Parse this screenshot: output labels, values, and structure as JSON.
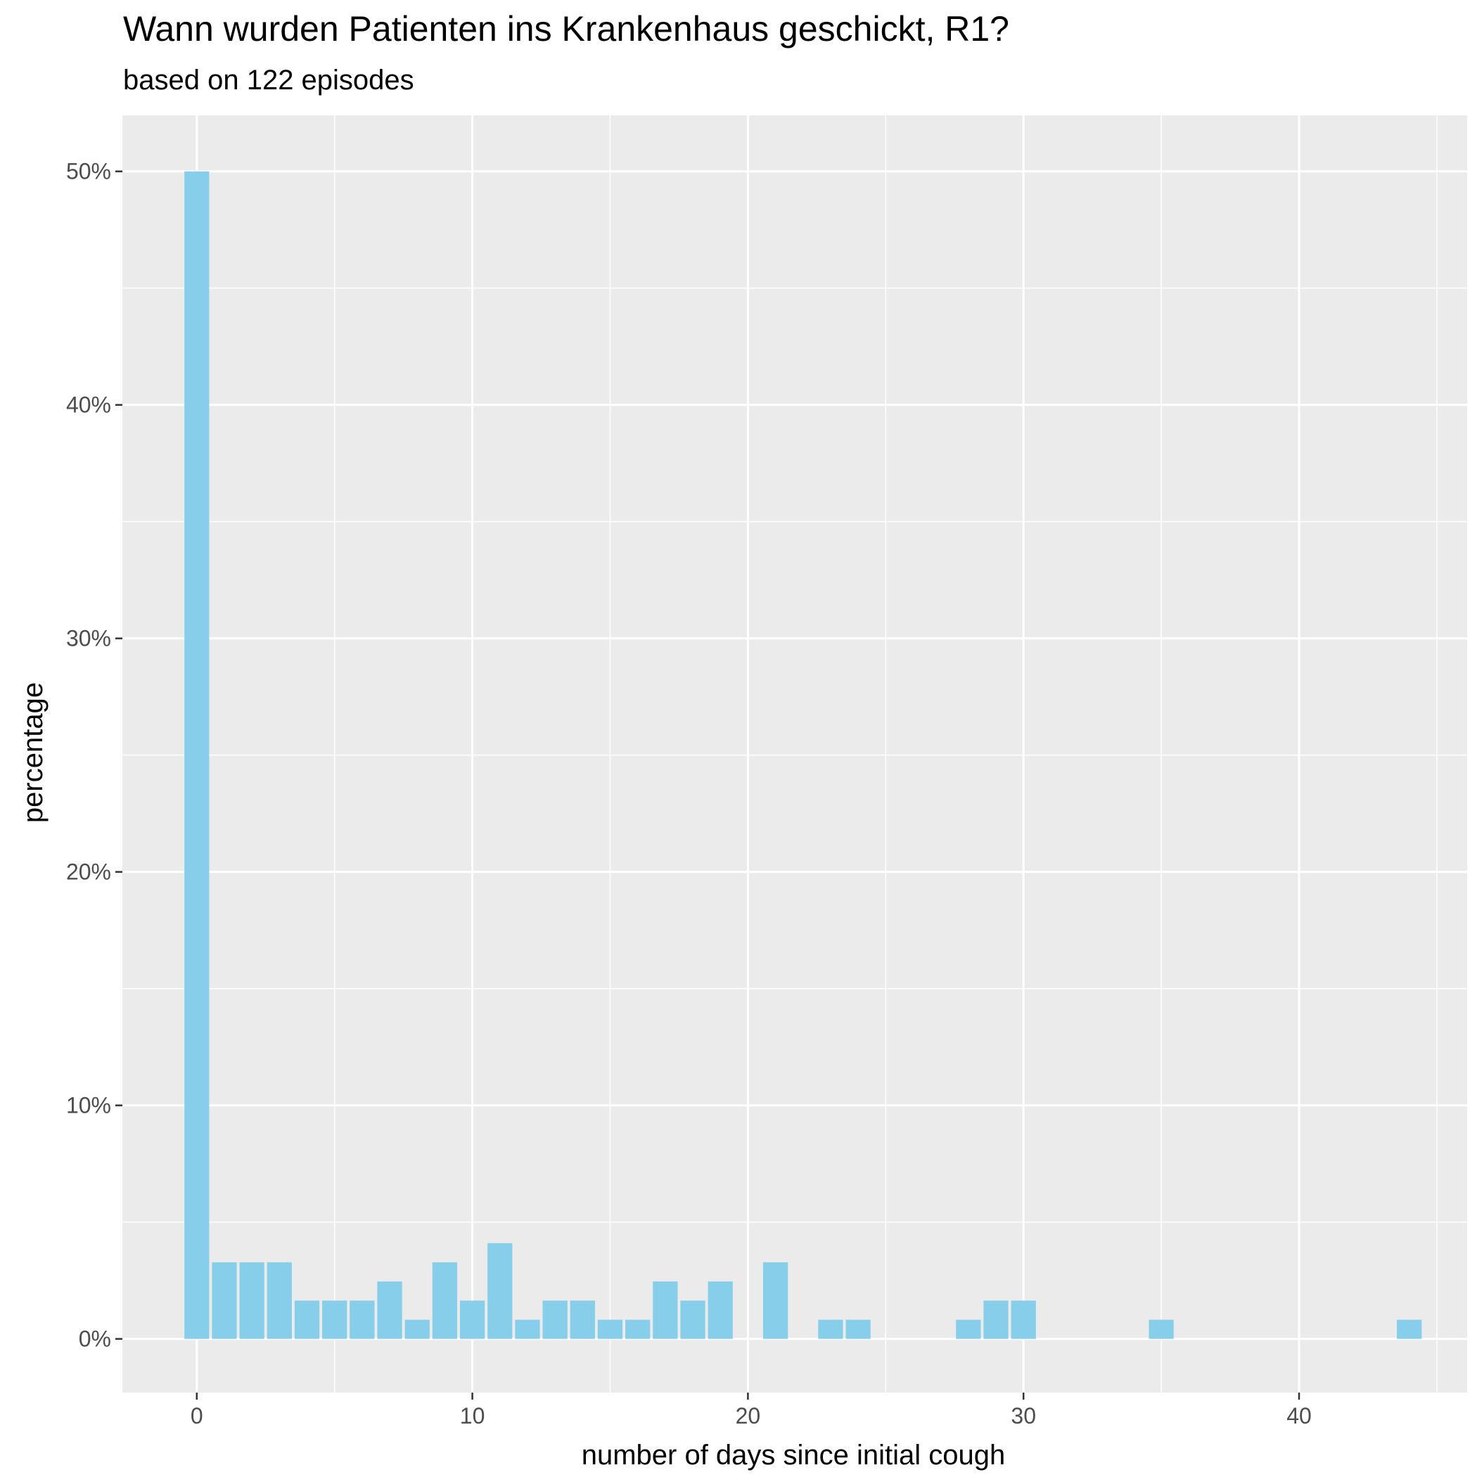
{
  "chart_data": {
    "type": "bar",
    "title": "Wann wurden Patienten ins Krankenhaus geschickt, R1?",
    "subtitle": "based on 122 episodes",
    "xlabel": "number of days since initial cough",
    "ylabel": "percentage",
    "xlim": [
      -2.7,
      46.1
    ],
    "ylim": [
      -2.3,
      52.4
    ],
    "x_ticks": [
      0,
      10,
      20,
      30,
      40
    ],
    "x_tick_labels": [
      "0",
      "10",
      "20",
      "30",
      "40"
    ],
    "y_ticks": [
      0,
      10,
      20,
      30,
      40,
      50
    ],
    "y_tick_labels": [
      "0%",
      "10%",
      "20%",
      "30%",
      "40%",
      "50%"
    ],
    "grid": true,
    "bar_color": "#87CEEB",
    "panel_color": "#EBEBEB",
    "grid_color": "#FFFFFF",
    "x": [
      0,
      1,
      2,
      3,
      4,
      5,
      6,
      7,
      8,
      9,
      10,
      11,
      12,
      13,
      14,
      15,
      16,
      17,
      18,
      19,
      21,
      23,
      24,
      28,
      29,
      30,
      35,
      44
    ],
    "values": [
      50,
      3.28,
      3.28,
      3.28,
      1.64,
      1.64,
      1.64,
      2.46,
      0.82,
      3.28,
      1.64,
      4.1,
      0.82,
      1.64,
      1.64,
      0.82,
      0.82,
      2.46,
      1.64,
      2.46,
      3.28,
      0.82,
      0.82,
      0.82,
      1.64,
      1.64,
      0.82,
      0.82
    ]
  }
}
